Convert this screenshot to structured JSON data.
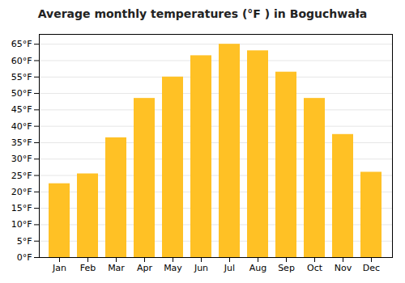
{
  "chart_data": {
    "type": "bar",
    "title": "Average monthly temperatures (°F ) in Boguchwała",
    "categories": [
      "Jan",
      "Feb",
      "Mar",
      "Apr",
      "May",
      "Jun",
      "Jul",
      "Aug",
      "Sep",
      "Oct",
      "Nov",
      "Dec"
    ],
    "values": [
      22.5,
      25.5,
      36.5,
      48.5,
      55.0,
      61.5,
      65.0,
      63.0,
      56.5,
      48.5,
      37.5,
      26.0
    ],
    "color": "#FFC125",
    "ylim": [
      0,
      68
    ],
    "yticks": [
      {
        "value": 0,
        "label": "0°F"
      },
      {
        "value": 5,
        "label": "5°F"
      },
      {
        "value": 10,
        "label": "10°F"
      },
      {
        "value": 15,
        "label": "15°F"
      },
      {
        "value": 20,
        "label": "20°F"
      },
      {
        "value": 25,
        "label": "25°F"
      },
      {
        "value": 30,
        "label": "30°F"
      },
      {
        "value": 35,
        "label": "35°F"
      },
      {
        "value": 40,
        "label": "40°F"
      },
      {
        "value": 45,
        "label": "45°F"
      },
      {
        "value": 50,
        "label": "50°F"
      },
      {
        "value": 55,
        "label": "55°F"
      },
      {
        "value": 60,
        "label": "60°F"
      },
      {
        "value": 65,
        "label": "65°F"
      }
    ],
    "grid": true
  }
}
